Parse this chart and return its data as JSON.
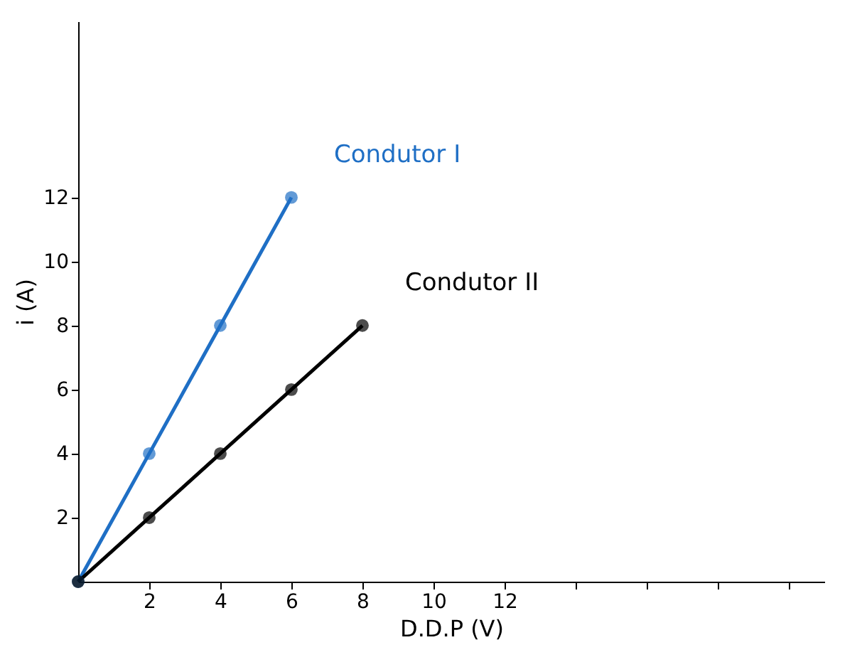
{
  "chart_data": {
    "type": "line",
    "xlabel": "D.D.P (V)",
    "ylabel": "i (A)",
    "xlim": [
      0,
      21
    ],
    "ylim": [
      0,
      17.5
    ],
    "xticks": [
      2,
      4,
      6,
      8,
      10,
      12,
      {
        "value": 14,
        "label": null
      },
      {
        "value": 16,
        "label": null
      },
      {
        "value": 18,
        "label": null
      },
      {
        "value": 20,
        "label": null
      }
    ],
    "yticks": [
      2,
      4,
      6,
      8,
      10,
      12
    ],
    "grid": false,
    "legend": false,
    "marker": "circle",
    "line_style": "solid",
    "series": [
      {
        "name": "Condutor I",
        "color": "#1f6fc5",
        "x": [
          0,
          2,
          4,
          6
        ],
        "values": [
          0,
          4,
          8,
          12
        ]
      },
      {
        "name": "Condutor II",
        "color": "#000000",
        "x": [
          0,
          2,
          4,
          6,
          8
        ],
        "values": [
          0,
          2,
          4,
          6,
          8
        ]
      }
    ]
  }
}
